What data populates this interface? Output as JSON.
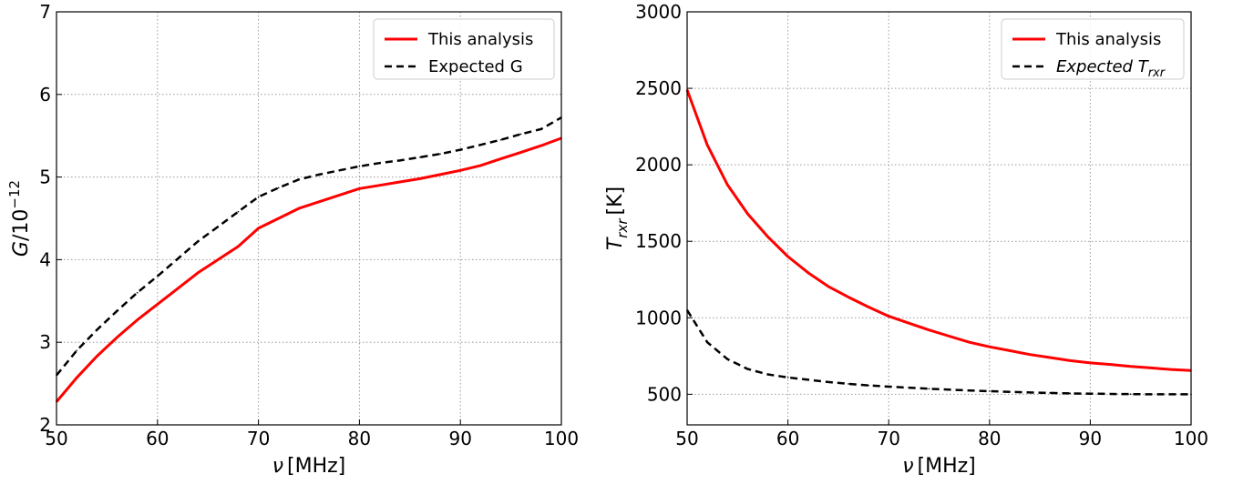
{
  "chart_data": [
    {
      "type": "line",
      "xlabel_symbol": "ν",
      "xlabel_unit": "[MHz]",
      "ylabel_symbol": "G",
      "ylabel_rest": "/10",
      "ylabel_exp": "−12",
      "xlim": [
        50,
        100
      ],
      "ylim": [
        2,
        7
      ],
      "x_ticks": [
        "50",
        "60",
        "70",
        "80",
        "90",
        "100"
      ],
      "y_ticks": [
        "2",
        "3",
        "4",
        "5",
        "6",
        "7"
      ],
      "grid": true,
      "legend": "top-right",
      "x": [
        50,
        52,
        54,
        56,
        58,
        60,
        62,
        64,
        66,
        68,
        70,
        72,
        74,
        76,
        78,
        80,
        82,
        84,
        86,
        88,
        90,
        92,
        94,
        96,
        98,
        100
      ],
      "series": [
        {
          "name": "This analysis",
          "color": "#ff0000",
          "style": "solid",
          "values": [
            2.28,
            2.57,
            2.83,
            3.06,
            3.27,
            3.46,
            3.65,
            3.84,
            4.0,
            4.16,
            4.38,
            4.5,
            4.62,
            4.7,
            4.78,
            4.86,
            4.9,
            4.94,
            4.98,
            5.03,
            5.08,
            5.14,
            5.22,
            5.3,
            5.38,
            5.47
          ]
        },
        {
          "name": "Expected G",
          "color": "#000000",
          "style": "dashed",
          "values": [
            2.6,
            2.9,
            3.15,
            3.38,
            3.6,
            3.8,
            4.01,
            4.22,
            4.4,
            4.58,
            4.76,
            4.87,
            4.97,
            5.03,
            5.08,
            5.13,
            5.17,
            5.2,
            5.24,
            5.28,
            5.33,
            5.39,
            5.45,
            5.52,
            5.58,
            5.72
          ]
        }
      ]
    },
    {
      "type": "line",
      "xlabel_symbol": "ν",
      "xlabel_unit": "[MHz]",
      "ylabel_symbol": "T",
      "ylabel_sub": "rxr",
      "ylabel_unit": "[K]",
      "xlim": [
        50,
        100
      ],
      "ylim": [
        300,
        3000
      ],
      "x_ticks": [
        "50",
        "60",
        "70",
        "80",
        "90",
        "100"
      ],
      "y_ticks": [
        "500",
        "1000",
        "1500",
        "2000",
        "2500",
        "3000"
      ],
      "grid": true,
      "legend": "top-right",
      "x": [
        50,
        52,
        54,
        56,
        58,
        60,
        62,
        64,
        66,
        68,
        70,
        72,
        74,
        76,
        78,
        80,
        82,
        84,
        86,
        88,
        90,
        92,
        94,
        96,
        98,
        100
      ],
      "series": [
        {
          "name": "This analysis",
          "color": "#ff0000",
          "style": "solid",
          "values": [
            2490,
            2130,
            1870,
            1680,
            1530,
            1400,
            1295,
            1205,
            1135,
            1070,
            1010,
            965,
            920,
            880,
            840,
            810,
            785,
            760,
            740,
            720,
            705,
            695,
            682,
            672,
            662,
            655
          ]
        },
        {
          "name": "Expected T",
          "name_sub": "rxr",
          "color": "#000000",
          "style": "dashed",
          "values": [
            1050,
            840,
            730,
            665,
            630,
            610,
            595,
            580,
            568,
            558,
            550,
            543,
            536,
            530,
            525,
            520,
            516,
            512,
            509,
            506,
            504,
            502,
            501,
            500,
            500,
            500
          ]
        }
      ]
    }
  ]
}
